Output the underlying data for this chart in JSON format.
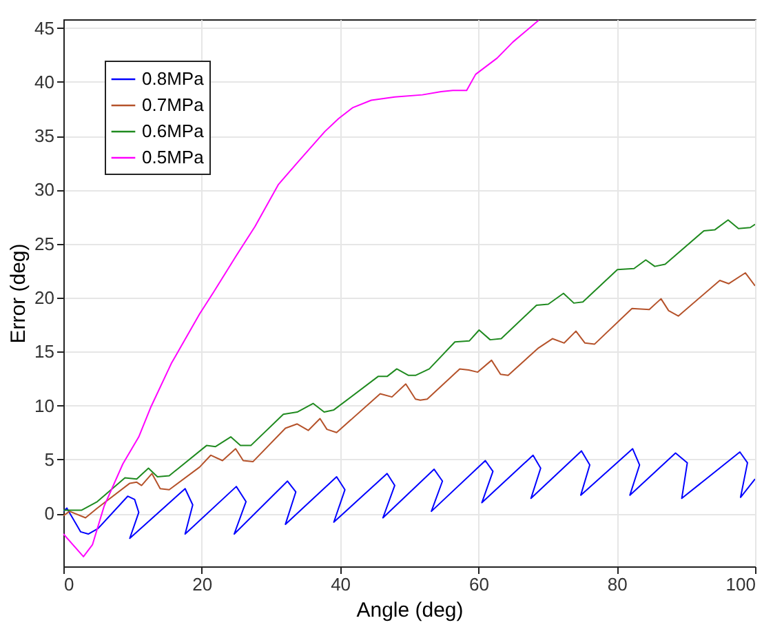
{
  "chart_data": {
    "type": "line",
    "xlabel": "Angle (deg)",
    "ylabel": "Error (deg)",
    "xlim": [
      0,
      100
    ],
    "ylim": [
      -4.9,
      45.8
    ],
    "xticks": [
      0,
      20,
      40,
      60,
      80,
      100
    ],
    "yticks": [
      0,
      5,
      10,
      15,
      20,
      25,
      30,
      35,
      40,
      45
    ],
    "grid": true,
    "legend": "top left",
    "line_style": "solid",
    "marker": "none",
    "series": [
      {
        "name": "0.8MPa",
        "color": "#0000ff",
        "x": [
          0,
          0.5,
          2.5,
          3.6,
          5,
          9.3,
          10.3,
          10.9,
          9.6,
          17.6,
          18.7,
          17.6,
          25.0,
          26.4,
          24.7,
          32.4,
          33.6,
          32.1,
          39.5,
          40.7,
          39.1,
          46.8,
          47.9,
          46.2,
          53.6,
          54.8,
          53.2,
          61.0,
          62.1,
          60.5,
          67.9,
          69.0,
          67.6,
          74.9,
          76.1,
          74.8,
          82.3,
          83.3,
          81.9,
          88.5,
          90.2,
          89.4,
          97.8,
          98.9,
          97.9,
          100
        ],
        "values": [
          0.2,
          0.5,
          -1.7,
          -1.9,
          -1.4,
          1.6,
          1.3,
          0.1,
          -2.3,
          2.3,
          0.8,
          -1.9,
          2.5,
          1.1,
          -1.9,
          3.0,
          2.0,
          -1.0,
          3.4,
          2.2,
          -0.8,
          3.7,
          2.6,
          -0.4,
          4.1,
          3.0,
          0.2,
          4.9,
          3.9,
          1.0,
          5.4,
          4.2,
          1.4,
          5.8,
          4.5,
          1.7,
          6.0,
          4.5,
          1.7,
          5.6,
          4.7,
          1.4,
          5.7,
          4.7,
          1.5,
          3.2
        ]
      },
      {
        "name": "0.7MPa",
        "color": "#b5522a",
        "x": [
          0,
          0.9,
          3.2,
          4.9,
          9.6,
          10.6,
          11.3,
          12.8,
          14.0,
          15.3,
          19.7,
          21.3,
          23.0,
          24.9,
          26.0,
          27.4,
          32.1,
          33.8,
          35.4,
          37.1,
          38.1,
          39.5,
          45.8,
          47.5,
          49.5,
          50.9,
          51.6,
          52.6,
          57.3,
          58.6,
          59.9,
          61.9,
          63.2,
          64.3,
          68.6,
          70.7,
          72.4,
          74.1,
          75.4,
          76.8,
          82.2,
          84.7,
          86.4,
          87.5,
          88.9,
          94.9,
          96.2,
          98.6,
          100
        ],
        "values": [
          -0.2,
          0.2,
          -0.4,
          0.5,
          2.8,
          2.9,
          2.6,
          3.7,
          2.3,
          2.2,
          4.3,
          5.4,
          4.9,
          6.0,
          4.9,
          4.8,
          7.9,
          8.3,
          7.7,
          8.8,
          7.8,
          7.5,
          11.1,
          10.8,
          12.0,
          10.6,
          10.5,
          10.6,
          13.4,
          13.3,
          13.1,
          14.2,
          12.9,
          12.8,
          15.3,
          16.2,
          15.8,
          16.9,
          15.8,
          15.7,
          19.0,
          18.9,
          19.9,
          18.8,
          18.3,
          21.6,
          21.3,
          22.3,
          21.1
        ]
      },
      {
        "name": "0.6MPa",
        "color": "#1f8a1f",
        "x": [
          0,
          0.9,
          2.6,
          4.9,
          8.9,
          10.6,
          12.3,
          13.6,
          15.3,
          20.7,
          22.0,
          24.2,
          25.6,
          27.1,
          31.8,
          33.8,
          36.1,
          37.7,
          39.1,
          45.5,
          46.8,
          48.2,
          49.9,
          50.9,
          52.9,
          56.6,
          58.7,
          60.1,
          61.7,
          63.3,
          68.4,
          70.1,
          72.3,
          73.8,
          75.1,
          80.1,
          82.5,
          84.2,
          85.5,
          87.0,
          92.6,
          94.2,
          96.1,
          97.6,
          99.3,
          100
        ],
        "values": [
          0.3,
          0.3,
          0.3,
          1.1,
          3.3,
          3.2,
          4.2,
          3.4,
          3.5,
          6.3,
          6.2,
          7.1,
          6.3,
          6.3,
          9.2,
          9.4,
          10.2,
          9.4,
          9.6,
          12.7,
          12.7,
          13.4,
          12.8,
          12.8,
          13.4,
          15.9,
          16.0,
          17.0,
          16.1,
          16.2,
          19.3,
          19.4,
          20.4,
          19.5,
          19.6,
          22.6,
          22.7,
          23.5,
          22.9,
          23.1,
          26.2,
          26.3,
          27.2,
          26.4,
          26.5,
          26.8
        ]
      },
      {
        "name": "0.5MPa",
        "color": "#ff00ff",
        "x": [
          0,
          2.9,
          4.2,
          5.9,
          8.6,
          10.9,
          12.6,
          15.6,
          19.7,
          21.7,
          25.0,
          27.7,
          31.1,
          33.8,
          37.8,
          39.8,
          41.8,
          44.5,
          47.9,
          51.9,
          54.6,
          56.3,
          58.3,
          59.6,
          62.7,
          65.0,
          68.7
        ],
        "values": [
          -1.9,
          -4.0,
          -2.9,
          0.7,
          4.6,
          7.1,
          9.8,
          13.9,
          18.5,
          20.5,
          23.9,
          26.6,
          30.5,
          32.5,
          35.4,
          36.6,
          37.6,
          38.3,
          38.6,
          38.8,
          39.1,
          39.2,
          39.2,
          40.7,
          42.2,
          43.7,
          45.7
        ]
      }
    ]
  }
}
